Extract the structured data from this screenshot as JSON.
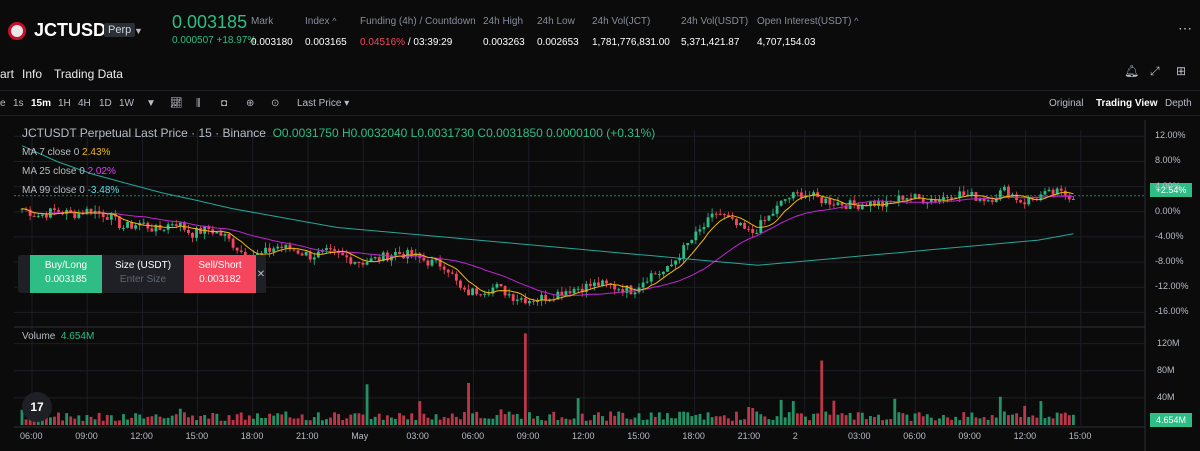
{
  "header": {
    "symbol": "JCTUSDT",
    "badge": "Perp",
    "price": "0.003185",
    "change": "0.000507 +18.97%",
    "stats": [
      {
        "label": "Mark",
        "value": "0.003180"
      },
      {
        "label": "Index",
        "value": "0.003165",
        "tip": "^"
      },
      {
        "label": "Funding (4h) / Countdown",
        "value_red": "0.04516%",
        "value": " / 03:39:29"
      },
      {
        "label": "24h High",
        "value": "0.003263"
      },
      {
        "label": "24h Low",
        "value": "0.002653"
      },
      {
        "label": "24h Vol(JCT)",
        "value": "1,781,776,831.00"
      },
      {
        "label": "24h Vol(USDT)",
        "value": "5,371,421.87"
      },
      {
        "label": "Open Interest(USDT)",
        "value": "4,707,154.03",
        "tip": "^"
      }
    ]
  },
  "tabs": [
    "art",
    "Info",
    "Trading Data"
  ],
  "toolbar": {
    "intervals": [
      "e",
      "1s",
      "15m",
      "1H",
      "4H",
      "1D",
      "1W"
    ],
    "active_interval": "15m",
    "last_price": "Last Price",
    "views": [
      "Original",
      "Trading View",
      "Depth"
    ],
    "active_view": "Trading View"
  },
  "legend": {
    "title": "JCTUSDT Perpetual Last Price · 15 · Binance",
    "ohlc": "O0.0031750 H0.0032040 L0.0031730 C0.0031850 0.0000100 (+0.31%)",
    "ma7_label": "MA 7 close 0",
    "ma7_value": "2.43%",
    "ma25_label": "MA 25 close 0",
    "ma25_value": "2.02%",
    "ma99_label": "MA 99 close 0",
    "ma99_value": "-3.48%",
    "volume_label": "Volume",
    "volume_value": "4.654M"
  },
  "trade": {
    "buy_label": "Buy/Long",
    "buy_price": "0.003185",
    "size_label": "Size (USDT)",
    "size_placeholder": "Enter Size",
    "sell_label": "Sell/Short",
    "sell_price": "0.003182"
  },
  "tv_logo": "17",
  "colors": {
    "up": "#2ebd85",
    "down": "#f6465d",
    "ma7": "#f0b90b",
    "ma25": "#c026d3",
    "ma99": "#26a69a"
  },
  "chart_data": {
    "type": "candlestick",
    "price_axis": [
      "12.00%",
      "8.00%",
      "4.00%",
      "0.00%",
      "-4.00%",
      "-8.00%",
      "-12.00%",
      "-16.00%"
    ],
    "price_axis_values": [
      12,
      8,
      4,
      0,
      -4,
      -8,
      -12,
      -16
    ],
    "volume_axis": [
      "120M",
      "80M",
      "40M"
    ],
    "volume_axis_values": [
      120,
      80,
      40
    ],
    "time_axis": [
      "06:00",
      "09:00",
      "12:00",
      "15:00",
      "18:00",
      "21:00",
      "May",
      "03:00",
      "06:00",
      "09:00",
      "12:00",
      "15:00",
      "18:00",
      "21:00",
      "2",
      "03:00",
      "06:00",
      "09:00",
      "12:00",
      "15:00"
    ],
    "current_pct": "+2.54%",
    "current_volume": "4.654M",
    "close_pct_path": [
      0.5,
      -0.6,
      0.2,
      -0.4,
      0.3,
      -0.5,
      -2.5,
      -1.8,
      -3.0,
      -1.5,
      -3.5,
      -2.7,
      -4.0,
      -6.5,
      -7.0,
      -5.5,
      -6.0,
      -7.0,
      -6.5,
      -7.2,
      -8.0,
      -7.5,
      -6.5,
      -7.0,
      -8.0,
      -8.5,
      -13.0,
      -12.5,
      -12.0,
      -13.5,
      -14.0,
      -13.5,
      -12.5,
      -12.0,
      -11.5,
      -12.0,
      -12.5,
      -10.0,
      -9.5,
      -6.0,
      -3.0,
      0.0,
      -2.0,
      -3.5,
      -1.0,
      2.0,
      3.0,
      2.0,
      1.5,
      1.0,
      1.5,
      1.0,
      2.5,
      2.0,
      2.0,
      3.0,
      2.5,
      2.0,
      3.5,
      1.5,
      2.5,
      3.0,
      2.5
    ],
    "ma99_path": [
      10.5,
      8.0,
      6.0,
      4.5,
      3.0,
      1.8,
      0.5,
      -0.5,
      -1.5,
      -2.5,
      -3.0,
      -3.5,
      -4.0,
      -4.5,
      -5.0,
      -5.5,
      -6.0,
      -6.5,
      -7.0,
      -7.5,
      -8.0,
      -8.5,
      -8.0,
      -7.5,
      -7.0,
      -6.5,
      -6.0,
      -5.5,
      -5.0,
      -4.5,
      -3.5
    ]
  }
}
